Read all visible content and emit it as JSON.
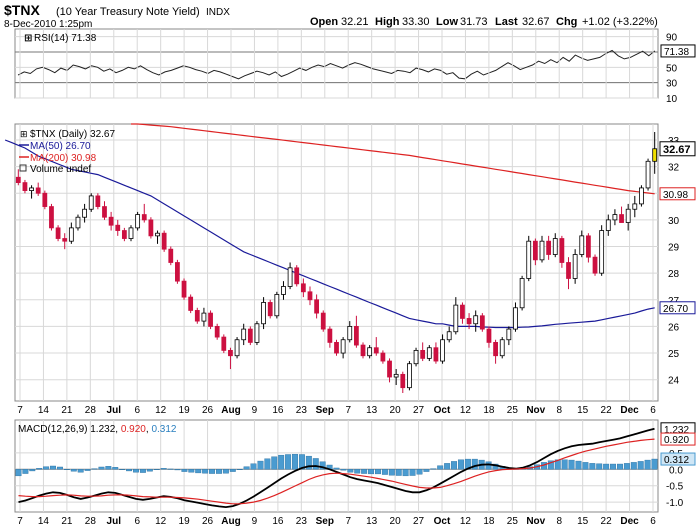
{
  "header": {
    "symbol": "$TNX",
    "name": "(10 Year Treasury Note Yield)",
    "exchange": "INDX",
    "datetime": "8-Dec-2010 1:25pm",
    "open_label": "Open",
    "open": "32.21",
    "high_label": "High",
    "high": "33.30",
    "low_label": "Low",
    "low": "31.73",
    "last_label": "Last",
    "last": "32.67",
    "chg_label": "Chg",
    "chg": "+1.02 (+3.22%)"
  },
  "colors": {
    "up": "#000000",
    "down": "#cc1040",
    "ma50": "#1a1a99",
    "ma200": "#dd2222",
    "grid": "#d8d8d8",
    "macd_line": "#000000",
    "signal_line": "#dd2222",
    "hist": "#4a9bd0",
    "last_candle": "#f0e000"
  },
  "chart_data": [
    {
      "panel": "rsi",
      "type": "line",
      "title": "RSI(14) 71.38",
      "last_value": "71.38",
      "ylim": [
        10,
        100
      ],
      "yticks": [
        "90",
        "70",
        "50",
        "30",
        "10"
      ],
      "values": [
        40,
        44,
        42,
        48,
        50,
        47,
        43,
        49,
        46,
        53,
        51,
        48,
        52,
        50,
        45,
        48,
        43,
        46,
        50,
        48,
        52,
        47,
        43,
        40,
        44,
        46,
        49,
        52,
        50,
        47,
        45,
        42,
        46,
        44,
        41,
        38,
        35,
        39,
        42,
        45,
        43,
        40,
        44,
        38,
        41,
        45,
        49,
        46,
        50,
        53,
        51,
        55,
        52,
        49,
        53,
        56,
        54,
        51,
        48,
        46,
        44,
        42,
        46,
        45,
        43,
        49,
        47,
        44,
        48,
        46,
        41,
        43,
        36,
        35,
        41,
        45,
        40,
        43,
        46,
        51,
        56,
        52,
        47,
        50,
        53,
        58,
        55,
        60,
        56,
        63,
        58,
        66,
        62,
        59,
        61,
        63,
        68,
        72,
        65,
        61,
        63,
        67,
        71,
        65,
        71.38
      ]
    },
    {
      "panel": "price",
      "type": "candlestick",
      "legend": [
        "$TNX (Daily) 32.67",
        "MA(50) 26.70",
        "MA(200) 30.98",
        "Volume undef"
      ],
      "ylim": [
        23.2,
        33.6
      ],
      "yticks": [
        "33",
        "32",
        "31",
        "30",
        "29",
        "28",
        "27",
        "26",
        "25",
        "24"
      ],
      "last_label": "32.67",
      "ma200_label": "30.98",
      "ma50_label": "26.70",
      "xticks": [
        "7",
        "14",
        "21",
        "28",
        "Jul",
        "6",
        "12",
        "19",
        "26",
        "Aug",
        "9",
        "16",
        "23",
        "Sep",
        "7",
        "13",
        "20",
        "27",
        "Oct",
        "12",
        "18",
        "25",
        "Nov",
        "8",
        "15",
        "22",
        "Dec",
        "6"
      ],
      "candles": [
        [
          31.6,
          31.9,
          31.3,
          31.4
        ],
        [
          31.4,
          31.5,
          31.0,
          31.1
        ],
        [
          31.1,
          31.3,
          30.8,
          31.2
        ],
        [
          31.2,
          31.4,
          30.9,
          31.0
        ],
        [
          31.0,
          31.1,
          30.4,
          30.5
        ],
        [
          30.5,
          30.6,
          29.6,
          29.7
        ],
        [
          29.7,
          29.8,
          29.2,
          29.3
        ],
        [
          29.3,
          29.5,
          28.9,
          29.2
        ],
        [
          29.2,
          29.9,
          29.1,
          29.7
        ],
        [
          29.7,
          30.2,
          29.6,
          30.1
        ],
        [
          30.1,
          30.6,
          29.9,
          30.4
        ],
        [
          30.4,
          31.0,
          30.3,
          30.9
        ],
        [
          30.9,
          31.0,
          30.4,
          30.5
        ],
        [
          30.5,
          30.7,
          30.0,
          30.1
        ],
        [
          30.1,
          30.3,
          29.6,
          29.8
        ],
        [
          29.8,
          30.0,
          29.4,
          29.6
        ],
        [
          29.6,
          29.7,
          29.2,
          29.3
        ],
        [
          29.3,
          29.8,
          29.2,
          29.7
        ],
        [
          29.7,
          30.3,
          29.6,
          30.2
        ],
        [
          30.2,
          30.6,
          29.9,
          30.0
        ],
        [
          30.0,
          30.1,
          29.3,
          29.4
        ],
        [
          29.4,
          29.6,
          29.1,
          29.5
        ],
        [
          29.5,
          29.6,
          28.8,
          28.9
        ],
        [
          28.9,
          29.0,
          28.3,
          28.4
        ],
        [
          28.4,
          28.5,
          27.6,
          27.7
        ],
        [
          27.7,
          27.8,
          27.0,
          27.1
        ],
        [
          27.1,
          27.2,
          26.5,
          26.6
        ],
        [
          26.6,
          26.7,
          26.1,
          26.2
        ],
        [
          26.2,
          26.7,
          26.0,
          26.5
        ],
        [
          26.5,
          26.6,
          25.9,
          26.0
        ],
        [
          26.0,
          26.1,
          25.5,
          25.6
        ],
        [
          25.6,
          25.7,
          25.0,
          25.1
        ],
        [
          25.1,
          25.2,
          24.4,
          24.9
        ],
        [
          24.9,
          25.6,
          24.8,
          25.5
        ],
        [
          25.5,
          26.1,
          25.3,
          25.9
        ],
        [
          25.9,
          26.0,
          25.3,
          25.4
        ],
        [
          25.4,
          26.2,
          25.3,
          26.1
        ],
        [
          26.1,
          27.1,
          25.9,
          26.9
        ],
        [
          26.9,
          27.0,
          26.3,
          26.4
        ],
        [
          26.4,
          27.3,
          26.3,
          27.2
        ],
        [
          27.2,
          27.7,
          27.0,
          27.5
        ],
        [
          27.5,
          28.4,
          27.4,
          28.2
        ],
        [
          28.2,
          28.3,
          27.5,
          27.6
        ],
        [
          27.6,
          27.8,
          27.1,
          27.3
        ],
        [
          27.3,
          27.5,
          26.8,
          27.0
        ],
        [
          27.0,
          27.2,
          26.3,
          26.5
        ],
        [
          26.5,
          26.6,
          25.8,
          25.9
        ],
        [
          25.9,
          26.0,
          25.2,
          25.4
        ],
        [
          25.4,
          25.5,
          24.9,
          25.0
        ],
        [
          25.0,
          25.6,
          24.8,
          25.5
        ],
        [
          25.5,
          26.2,
          25.4,
          26.0
        ],
        [
          26.0,
          26.4,
          25.2,
          25.3
        ],
        [
          25.3,
          25.4,
          24.8,
          24.9
        ],
        [
          24.9,
          25.3,
          24.8,
          25.2
        ],
        [
          25.2,
          25.6,
          24.9,
          25.0
        ],
        [
          25.0,
          25.1,
          24.6,
          24.7
        ],
        [
          24.7,
          24.8,
          23.9,
          24.1
        ],
        [
          24.1,
          24.4,
          23.8,
          24.2
        ],
        [
          24.2,
          24.3,
          23.5,
          23.7
        ],
        [
          23.7,
          24.7,
          23.6,
          24.6
        ],
        [
          24.6,
          25.2,
          24.5,
          25.1
        ],
        [
          25.1,
          25.4,
          24.7,
          24.8
        ],
        [
          24.8,
          25.3,
          24.7,
          25.2
        ],
        [
          25.2,
          25.4,
          24.6,
          24.7
        ],
        [
          24.7,
          25.7,
          24.6,
          25.5
        ],
        [
          25.5,
          26.0,
          25.4,
          25.8
        ],
        [
          25.8,
          27.1,
          25.7,
          26.8
        ],
        [
          26.8,
          26.9,
          26.1,
          26.3
        ],
        [
          26.3,
          26.5,
          25.9,
          26.1
        ],
        [
          26.1,
          26.6,
          25.8,
          26.4
        ],
        [
          26.4,
          26.5,
          25.8,
          25.9
        ],
        [
          25.9,
          26.0,
          25.2,
          25.4
        ],
        [
          25.4,
          25.5,
          24.6,
          24.9
        ],
        [
          24.9,
          25.6,
          24.8,
          25.5
        ],
        [
          25.5,
          26.0,
          25.3,
          25.9
        ],
        [
          25.9,
          26.9,
          25.8,
          26.7
        ],
        [
          26.7,
          27.9,
          26.6,
          27.8
        ],
        [
          27.8,
          29.4,
          27.7,
          29.2
        ],
        [
          29.2,
          29.3,
          28.3,
          28.5
        ],
        [
          28.5,
          29.4,
          28.4,
          29.2
        ],
        [
          29.2,
          29.4,
          28.5,
          28.7
        ],
        [
          28.7,
          29.5,
          28.6,
          29.3
        ],
        [
          29.3,
          29.4,
          28.2,
          28.4
        ],
        [
          28.4,
          28.6,
          27.4,
          27.8
        ],
        [
          27.8,
          28.9,
          27.6,
          28.7
        ],
        [
          28.7,
          29.6,
          28.6,
          29.4
        ],
        [
          29.4,
          29.5,
          28.4,
          28.6
        ],
        [
          28.6,
          28.7,
          27.9,
          28.0
        ],
        [
          28.0,
          29.8,
          27.9,
          29.6
        ],
        [
          29.6,
          30.2,
          29.4,
          30.0
        ],
        [
          30.0,
          30.4,
          29.8,
          30.2
        ],
        [
          30.2,
          30.5,
          29.9,
          29.9
        ],
        [
          29.9,
          30.6,
          29.6,
          30.4
        ],
        [
          30.4,
          30.9,
          30.1,
          30.6
        ],
        [
          30.6,
          31.3,
          30.5,
          31.2
        ],
        [
          31.2,
          32.3,
          31.1,
          32.2
        ],
        [
          32.2,
          33.3,
          31.73,
          32.67
        ]
      ],
      "ma50": [
        33.0,
        32.9,
        32.8,
        32.7,
        32.55,
        32.4,
        32.3,
        32.2,
        32.1,
        32.0,
        31.9,
        31.85,
        31.8,
        31.75,
        31.7,
        31.6,
        31.5,
        31.4,
        31.3,
        31.2,
        31.1,
        31.0,
        30.9,
        30.75,
        30.6,
        30.45,
        30.3,
        30.15,
        30.0,
        29.85,
        29.7,
        29.55,
        29.4,
        29.25,
        29.1,
        28.95,
        28.8,
        28.7,
        28.6,
        28.5,
        28.4,
        28.3,
        28.2,
        28.1,
        28.0,
        27.9,
        27.8,
        27.7,
        27.6,
        27.5,
        27.4,
        27.3,
        27.2,
        27.1,
        27.0,
        26.9,
        26.8,
        26.7,
        26.6,
        26.5,
        26.4,
        26.3,
        26.25,
        26.2,
        26.15,
        26.1,
        26.1,
        26.05,
        26.0,
        26.0,
        26.0,
        26.0,
        25.98,
        25.97,
        25.96,
        25.96,
        25.96,
        25.96,
        25.97,
        25.98,
        26.0,
        26.02,
        26.05,
        26.08,
        26.1,
        26.12,
        26.14,
        26.16,
        26.18,
        26.2,
        26.25,
        26.3,
        26.35,
        26.4,
        26.45,
        26.5,
        26.58,
        26.65,
        26.7
      ],
      "ma200": [
        33.6,
        33.6,
        33.58,
        33.56,
        33.54,
        33.52,
        33.5,
        33.47,
        33.44,
        33.41,
        33.38,
        33.35,
        33.32,
        33.29,
        33.26,
        33.23,
        33.2,
        33.17,
        33.14,
        33.11,
        33.08,
        33.05,
        33.02,
        32.99,
        32.96,
        32.93,
        32.9,
        32.87,
        32.84,
        32.81,
        32.78,
        32.75,
        32.72,
        32.69,
        32.66,
        32.63,
        32.6,
        32.57,
        32.54,
        32.51,
        32.48,
        32.45,
        32.42,
        32.38,
        32.34,
        32.3,
        32.26,
        32.22,
        32.18,
        32.14,
        32.1,
        32.06,
        32.02,
        31.98,
        31.94,
        31.9,
        31.86,
        31.82,
        31.78,
        31.74,
        31.7,
        31.66,
        31.62,
        31.58,
        31.54,
        31.5,
        31.46,
        31.42,
        31.38,
        31.34,
        31.3,
        31.26,
        31.22,
        31.18,
        31.14,
        31.1,
        31.07,
        31.04,
        31.01,
        30.98
      ]
    },
    {
      "panel": "macd",
      "type": "line",
      "title": "MACD(12,26,9) 1.232, 0.920, 0.312",
      "title_prefix": "MACD(12,26,9)",
      "macd_value": "1.232",
      "signal_value": "0.920",
      "hist_value": "0.312",
      "ylim": [
        -1.3,
        1.5
      ],
      "yticks": [
        "0.5",
        "0.0",
        "-0.5",
        "-1.0"
      ],
      "macd": [
        -1.0,
        -0.95,
        -0.88,
        -0.8,
        -0.74,
        -0.7,
        -0.72,
        -0.78,
        -0.85,
        -0.9,
        -0.86,
        -0.8,
        -0.74,
        -0.7,
        -0.72,
        -0.78,
        -0.84,
        -0.9,
        -0.93,
        -0.9,
        -0.86,
        -0.82,
        -0.84,
        -0.88,
        -0.94,
        -0.98,
        -1.02,
        -1.06,
        -1.1,
        -1.13,
        -1.15,
        -1.12,
        -1.05,
        -0.95,
        -0.83,
        -0.7,
        -0.56,
        -0.42,
        -0.28,
        -0.16,
        -0.05,
        0.04,
        0.09,
        0.1,
        0.06,
        0.0,
        -0.08,
        -0.16,
        -0.24,
        -0.3,
        -0.34,
        -0.38,
        -0.42,
        -0.48,
        -0.54,
        -0.6,
        -0.66,
        -0.7,
        -0.7,
        -0.64,
        -0.55,
        -0.44,
        -0.32,
        -0.2,
        -0.08,
        0.02,
        0.1,
        0.14,
        0.15,
        0.12,
        0.08,
        0.04,
        0.02,
        0.05,
        0.12,
        0.22,
        0.34,
        0.46,
        0.56,
        0.64,
        0.7,
        0.74,
        0.76,
        0.78,
        0.82,
        0.86,
        0.9,
        0.94,
        1.0,
        1.06,
        1.12,
        1.18,
        1.232
      ],
      "signal": [
        -0.8,
        -0.82,
        -0.83,
        -0.83,
        -0.82,
        -0.8,
        -0.79,
        -0.78,
        -0.79,
        -0.81,
        -0.82,
        -0.82,
        -0.81,
        -0.79,
        -0.78,
        -0.78,
        -0.79,
        -0.81,
        -0.83,
        -0.84,
        -0.85,
        -0.85,
        -0.85,
        -0.86,
        -0.87,
        -0.89,
        -0.91,
        -0.94,
        -0.97,
        -1.0,
        -1.03,
        -1.05,
        -1.05,
        -1.03,
        -1.0,
        -0.95,
        -0.88,
        -0.8,
        -0.71,
        -0.61,
        -0.51,
        -0.41,
        -0.31,
        -0.23,
        -0.17,
        -0.13,
        -0.12,
        -0.13,
        -0.15,
        -0.18,
        -0.21,
        -0.24,
        -0.28,
        -0.32,
        -0.36,
        -0.41,
        -0.46,
        -0.51,
        -0.55,
        -0.57,
        -0.57,
        -0.55,
        -0.5,
        -0.44,
        -0.37,
        -0.29,
        -0.21,
        -0.14,
        -0.08,
        -0.04,
        -0.01,
        0.0,
        0.01,
        0.02,
        0.04,
        0.08,
        0.13,
        0.2,
        0.27,
        0.35,
        0.42,
        0.49,
        0.55,
        0.6,
        0.65,
        0.7,
        0.74,
        0.78,
        0.82,
        0.85,
        0.88,
        0.9,
        0.92
      ]
    }
  ]
}
